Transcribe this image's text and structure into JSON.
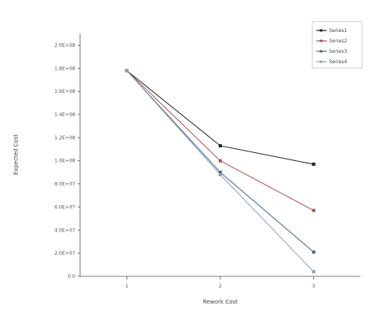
{
  "chart_data": {
    "type": "line",
    "title": "",
    "xlabel": "Rework Cost",
    "ylabel": "Expected Cost",
    "x": [
      1,
      2,
      3
    ],
    "x_tick_labels": [
      "1",
      "2",
      "3"
    ],
    "xlim": [
      0.5,
      3.5
    ],
    "ylim": [
      0,
      21
    ],
    "y_tick_values": [
      0,
      2,
      4,
      6,
      8,
      10,
      12,
      14,
      16,
      18,
      20
    ],
    "y_tick_labels": [
      "0.0",
      "2.0E+07",
      "4.0E+07",
      "6.0E+07",
      "8.0E+07",
      "1.0E+08",
      "1.2E+08",
      "1.4E+08",
      "1.6E+08",
      "1.8E+08",
      "2.0E+08"
    ],
    "grid": false,
    "legend_position": "top-right",
    "series": [
      {
        "name": "Series1",
        "values": [
          17.8,
          11.3,
          9.7
        ],
        "color": "#222222",
        "marker": "square"
      },
      {
        "name": "Series2",
        "values": [
          17.8,
          10.0,
          5.7
        ],
        "color": "#b05050",
        "marker": "square"
      },
      {
        "name": "Series3",
        "values": [
          17.8,
          9.0,
          2.1
        ],
        "color": "#446688",
        "marker": "square"
      },
      {
        "name": "Series4",
        "values": [
          17.8,
          8.8,
          0.4
        ],
        "color": "#8aa0c0",
        "marker": "square"
      }
    ]
  }
}
